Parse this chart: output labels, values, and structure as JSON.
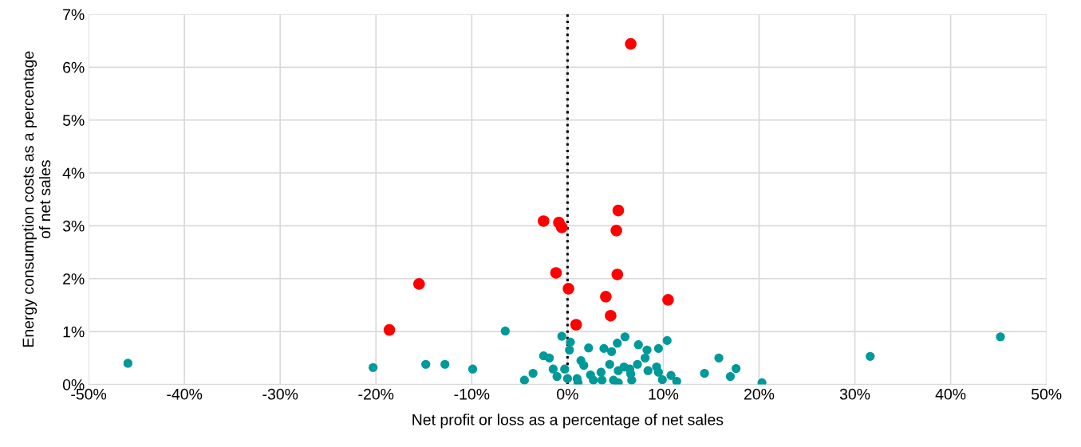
{
  "chart_data": {
    "type": "scatter",
    "xlabel": "Net profit or loss as a percentage of net sales",
    "ylabel": "Energy consumption costs as a percentage\nof net sales",
    "xlim": [
      -50,
      50
    ],
    "xticks": [
      {
        "value": -50,
        "label": "-50%"
      },
      {
        "value": -40,
        "label": "-40%"
      },
      {
        "value": -30,
        "label": "-30%"
      },
      {
        "value": -20,
        "label": "-20%"
      },
      {
        "value": -10,
        "label": "-10%"
      },
      {
        "value": 0,
        "label": "0%"
      },
      {
        "value": 10,
        "label": "10%"
      },
      {
        "value": 20,
        "label": "20%"
      },
      {
        "value": 30,
        "label": "30%"
      },
      {
        "value": 40,
        "label": "40%"
      },
      {
        "value": 50,
        "label": "50%"
      }
    ],
    "ylim": [
      0,
      7
    ],
    "yticks": [
      {
        "value": 0,
        "label": "0%"
      },
      {
        "value": 1,
        "label": "1%"
      },
      {
        "value": 2,
        "label": "2%"
      },
      {
        "value": 3,
        "label": "3%"
      },
      {
        "value": 4,
        "label": "4%"
      },
      {
        "value": 5,
        "label": "5%"
      },
      {
        "value": 6,
        "label": "6%"
      },
      {
        "value": 7,
        "label": "7%"
      }
    ],
    "grid": true,
    "legend": false,
    "marker": "circle",
    "ref_lines": [
      {
        "axis": "x",
        "value": 0,
        "color": "#000000",
        "line_style": "dotted"
      }
    ],
    "series": [
      {
        "color": "#009999",
        "x": [
          -45.9,
          -20.3,
          -14.8,
          -12.8,
          -9.9,
          -6.5,
          -4.5,
          -3.6,
          -2.5,
          -1.9,
          -1.5,
          -1.1,
          -0.6,
          -0.3,
          0,
          0.3,
          0.2,
          1.0,
          1.1,
          1.4,
          1.7,
          2.2,
          2.4,
          2.7,
          3.5,
          3.6,
          3.8,
          4.4,
          4.6,
          4.8,
          5.3,
          5.3,
          5.2,
          6.0,
          5.9,
          6.5,
          6.7,
          6.6,
          7.3,
          7.4,
          8.1,
          8.3,
          8.4,
          9.3,
          9.5,
          9.5,
          9.9,
          10.4,
          10.8,
          11.4,
          14.3,
          15.8,
          17.0,
          17.6,
          20.3,
          31.6,
          45.2
        ],
        "values": [
          0.4,
          0.32,
          0.38,
          0.38,
          0.29,
          1.01,
          0.08,
          0.21,
          0.54,
          0.5,
          0.29,
          0.15,
          0.91,
          0.29,
          0.11,
          0.8,
          0.65,
          0.11,
          0.03,
          0.45,
          0.36,
          0.69,
          0.18,
          0.08,
          0.23,
          0.08,
          0.68,
          0.38,
          0.62,
          0.08,
          0.26,
          0.03,
          0.78,
          0.9,
          0.33,
          0.29,
          0.08,
          0.2,
          0.38,
          0.75,
          0.5,
          0.65,
          0.26,
          0.33,
          0.68,
          0.23,
          0.09,
          0.83,
          0.17,
          0.06,
          0.21,
          0.5,
          0.15,
          0.3,
          0.03,
          0.53,
          0.9
        ]
      },
      {
        "color": "#ff0000",
        "x": [
          6.6,
          -2.5,
          -0.9,
          -0.6,
          5.3,
          5.1,
          -15.5,
          -1.2,
          0.1,
          5.2,
          4.0,
          10.5,
          4.5,
          0.9,
          -18.6
        ],
        "values": [
          6.44,
          3.09,
          3.06,
          2.97,
          3.29,
          2.91,
          1.9,
          2.11,
          1.81,
          2.08,
          1.66,
          1.6,
          1.3,
          1.13,
          1.03
        ]
      }
    ]
  }
}
